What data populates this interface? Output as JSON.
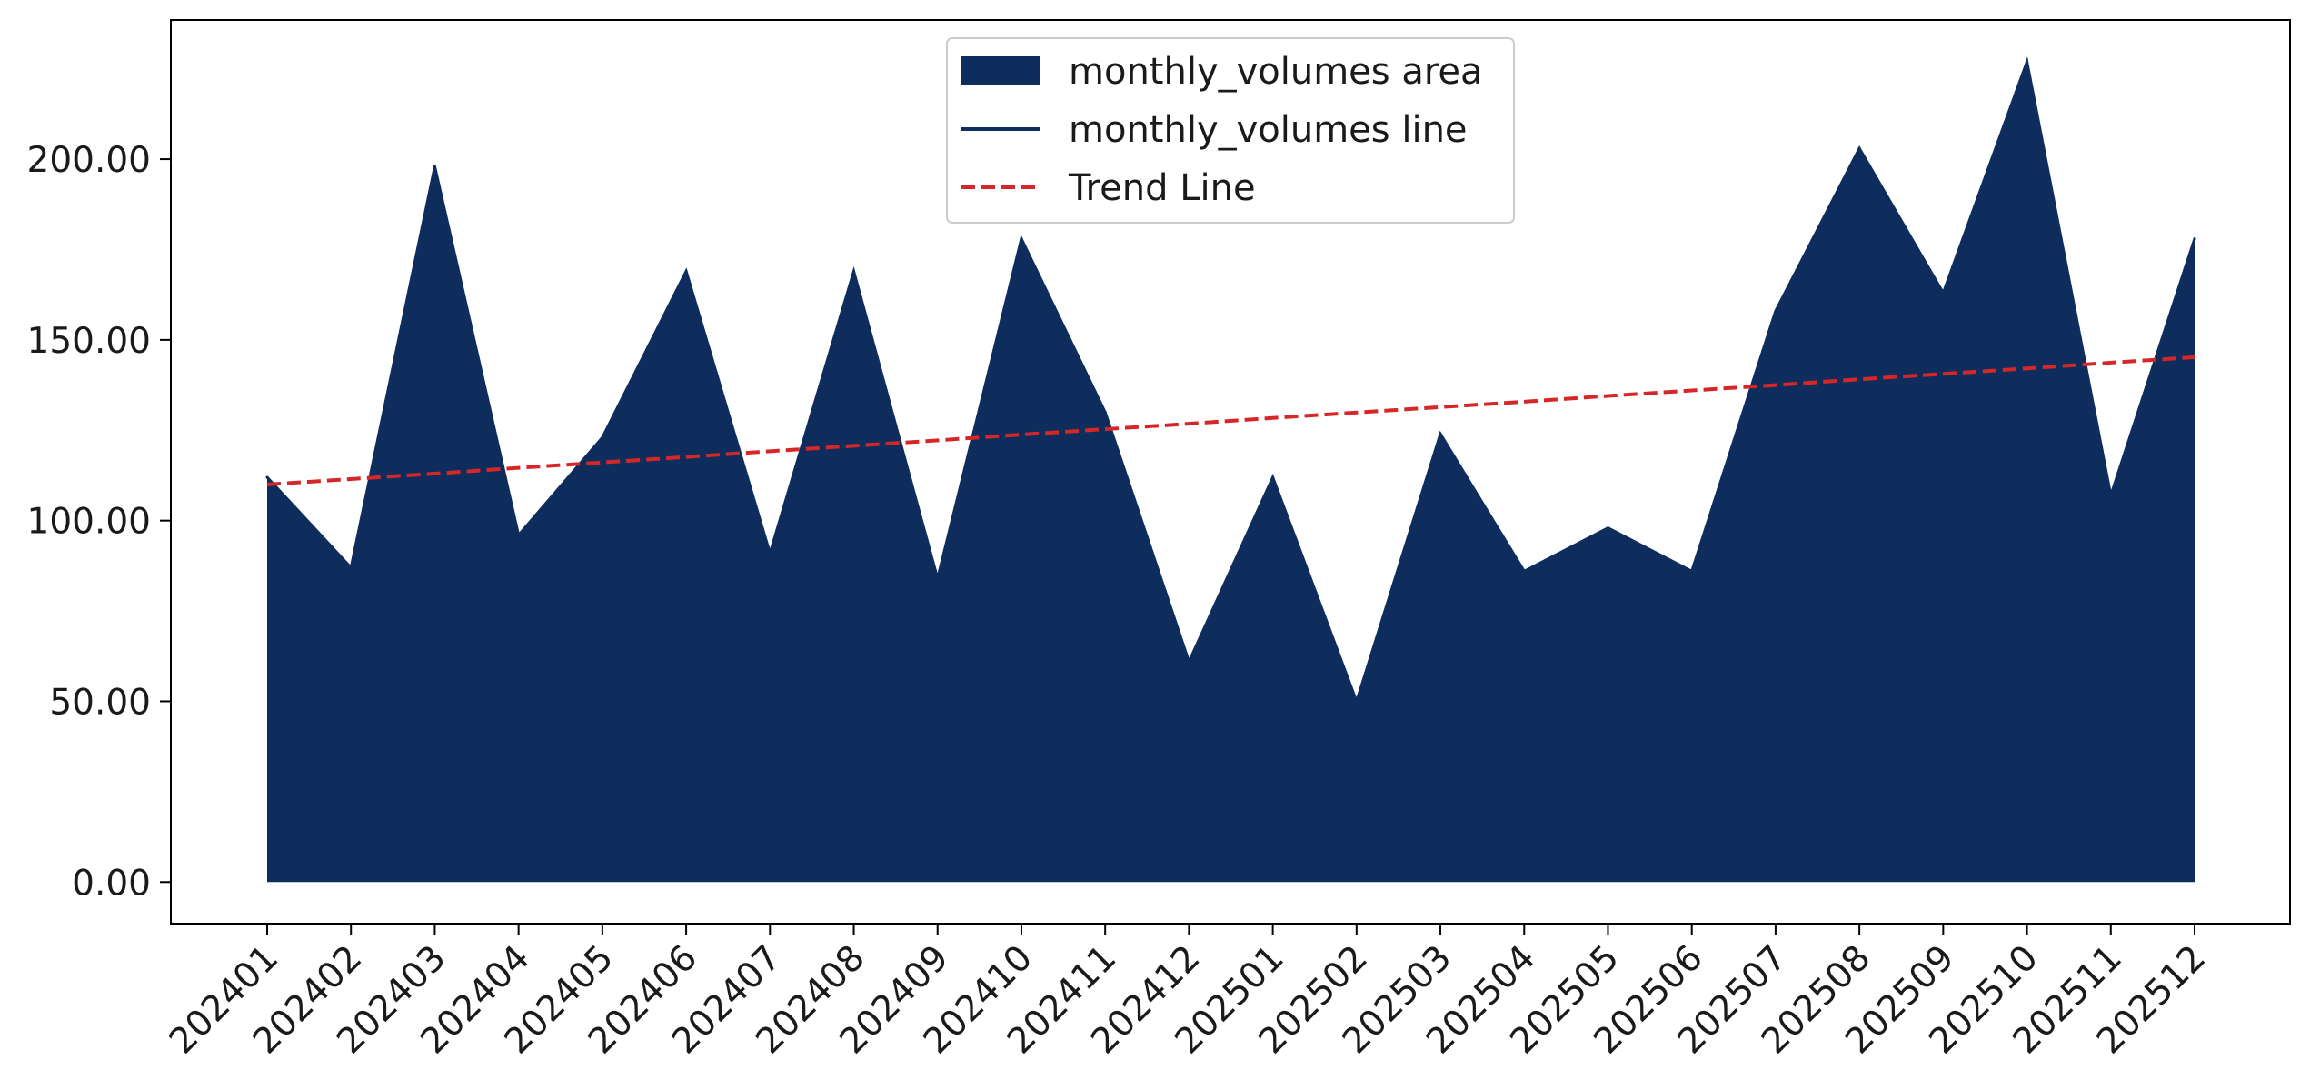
{
  "chart_data": {
    "type": "area",
    "title": "",
    "xlabel": "",
    "ylabel": "",
    "categories": [
      "202401",
      "202402",
      "202403",
      "202404",
      "202405",
      "202406",
      "202407",
      "202408",
      "202409",
      "202410",
      "202411",
      "202412",
      "202501",
      "202502",
      "202503",
      "202504",
      "202505",
      "202506",
      "202507",
      "202508",
      "202509",
      "202510",
      "202511",
      "202512"
    ],
    "series": [
      {
        "name": "monthly_volumes area",
        "style": "area",
        "color": "#0f2d5c",
        "values": [
          112,
          87,
          198,
          96,
          123,
          169,
          91,
          169,
          84,
          178,
          130,
          61,
          112,
          50,
          124,
          86,
          98,
          86,
          158,
          203,
          163,
          227,
          107,
          178
        ]
      },
      {
        "name": "monthly_volumes line",
        "style": "line",
        "color": "#0f2d5c"
      },
      {
        "name": "Trend Line",
        "style": "dashed-line",
        "color": "#d62728",
        "values": [
          110.0,
          111.5,
          113.0,
          114.6,
          116.1,
          117.6,
          119.2,
          120.7,
          122.2,
          123.8,
          125.3,
          126.8,
          128.4,
          129.9,
          131.4,
          132.9,
          134.5,
          136.0,
          137.5,
          139.1,
          140.6,
          142.1,
          143.7,
          145.2
        ]
      }
    ],
    "ylim": [
      -11.5,
      238.5
    ],
    "yticks": [
      0,
      50,
      100,
      150,
      200
    ],
    "ytick_labels": [
      "0.00",
      "50.00",
      "100.00",
      "150.00",
      "200.00"
    ],
    "grid": false,
    "legend_position": "top-center"
  }
}
